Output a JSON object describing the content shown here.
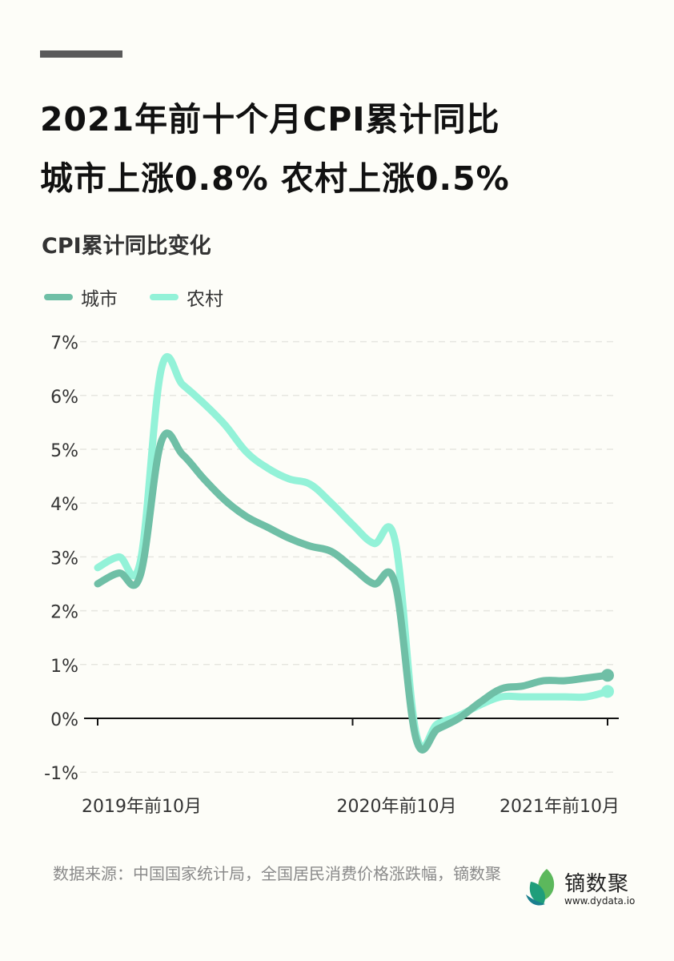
{
  "title_lines": [
    "2021年前十个月CPI累计同比",
    "城市上涨0.8%  农村上涨0.5%"
  ],
  "source": "数据来源：中国国家统计局，全国居民消费价格涨跌幅，镝数聚",
  "logo": {
    "name": "镝数聚",
    "url": "www.dydata.io"
  },
  "chart_data": {
    "type": "line",
    "title": "CPI累计同比变化",
    "ylim": [
      -1,
      7
    ],
    "yticks": [
      "-1%",
      "0%",
      "1%",
      "2%",
      "3%",
      "4%",
      "5%",
      "6%",
      "7%"
    ],
    "xtick_labels": [
      "2019年前10月",
      "2020年前10月",
      "2021年前10月"
    ],
    "grid": "horizontal dashed",
    "legend_position": "top-left",
    "x": [
      "2019-10",
      "2019-11",
      "2019-12",
      "2020-01",
      "2020-02",
      "2020-03",
      "2020-04",
      "2020-05",
      "2020-06",
      "2020-07",
      "2020-08",
      "2020-09",
      "2020-10",
      "2020-11",
      "2020-12",
      "2021-01",
      "2021-02",
      "2021-03",
      "2021-04",
      "2021-05",
      "2021-06",
      "2021-07",
      "2021-08",
      "2021-09",
      "2021-10"
    ],
    "series": [
      {
        "name": "城市",
        "color": "#6fbfa6",
        "values": [
          2.5,
          2.7,
          2.65,
          5.15,
          4.9,
          4.45,
          4.05,
          3.75,
          3.55,
          3.35,
          3.2,
          3.1,
          2.8,
          2.5,
          2.5,
          -0.4,
          -0.2,
          0.0,
          0.3,
          0.55,
          0.6,
          0.7,
          0.7,
          0.75,
          0.8
        ]
      },
      {
        "name": "农村",
        "color": "#93f2d8",
        "values": [
          2.8,
          3.0,
          2.9,
          6.5,
          6.2,
          5.85,
          5.45,
          4.95,
          4.65,
          4.45,
          4.35,
          4.0,
          3.6,
          3.25,
          3.3,
          -0.3,
          -0.1,
          0.05,
          0.25,
          0.4,
          0.4,
          0.4,
          0.4,
          0.4,
          0.5
        ]
      }
    ]
  }
}
